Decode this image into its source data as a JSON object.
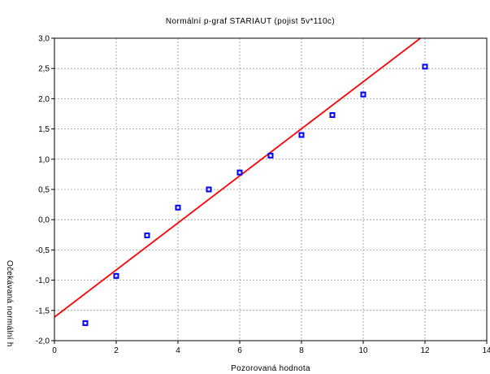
{
  "chart_data": {
    "type": "scatter",
    "title": "Normální p-graf STARIAUT (pojist 5v*110c)",
    "xlabel": "Pozorovaná hodnota",
    "ylabel": "Očekávaná normální h",
    "xlim": [
      0,
      14
    ],
    "ylim": [
      -2.0,
      3.0
    ],
    "x_ticks": [
      "0",
      "2",
      "4",
      "6",
      "8",
      "10",
      "12",
      "14"
    ],
    "y_ticks": [
      "-2,0",
      "-1,5",
      "-1,0",
      "-0,5",
      "0,0",
      "0,5",
      "1,0",
      "1,5",
      "2,0",
      "2,5",
      "3,0"
    ],
    "grid": true,
    "series": [
      {
        "values_x": [
          1,
          2,
          3,
          4,
          5,
          6,
          7,
          8,
          9,
          10,
          12
        ],
        "values_y": [
          -1.71,
          -0.93,
          -0.26,
          0.2,
          0.5,
          0.78,
          1.06,
          1.4,
          1.73,
          2.07,
          2.53
        ],
        "color": "#0000ff"
      }
    ],
    "fit_line": {
      "x": [
        0,
        11.85
      ],
      "y": [
        -1.61,
        3.0
      ],
      "color": "#ff0000"
    }
  }
}
